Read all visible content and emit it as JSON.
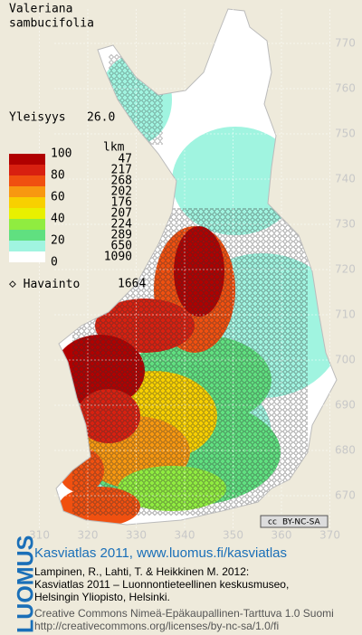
{
  "species": {
    "genus": "Valeriana",
    "epithet": "sambucifolia"
  },
  "frequency": {
    "label": "Yleisyys",
    "value": "26.0"
  },
  "legend": {
    "count_header": "lkm",
    "scale_labels": [
      100,
      80,
      60,
      40,
      20,
      0
    ],
    "counts": [
      47,
      217,
      268,
      202,
      176,
      207,
      224,
      289,
      650,
      1090
    ],
    "colors": [
      "#b00000",
      "#d82010",
      "#f05010",
      "#f89810",
      "#f8d000",
      "#e8f000",
      "#90ec40",
      "#60e080",
      "#a0f4e0",
      "#ffffff"
    ]
  },
  "observations": {
    "label": "Havainto",
    "count": 1664
  },
  "map": {
    "y_ticks": [
      770,
      760,
      750,
      740,
      730,
      720,
      710,
      700,
      690,
      680,
      670
    ],
    "x_ticks": [
      310,
      320,
      330,
      340,
      350,
      360,
      370
    ]
  },
  "license_badge": "BY-NC-SA",
  "footer": {
    "brand": "LUOMUS",
    "headline": "Kasviatlas 2011, www.luomus.fi/kasviatlas",
    "citation": [
      "Lampinen, R., Lahti, T. & Heikkinen M. 2012:",
      "Kasviatlas 2011 – Luonnontieteellinen keskusmuseo,",
      "Helsingin Yliopisto, Helsinki."
    ],
    "license": [
      "Creative Commons Nimeä-Epäkaupallinen-Tarttuva 1.0 Suomi",
      "http://creativecommons.org/licenses/by-nc-sa/1.0/fi"
    ]
  }
}
